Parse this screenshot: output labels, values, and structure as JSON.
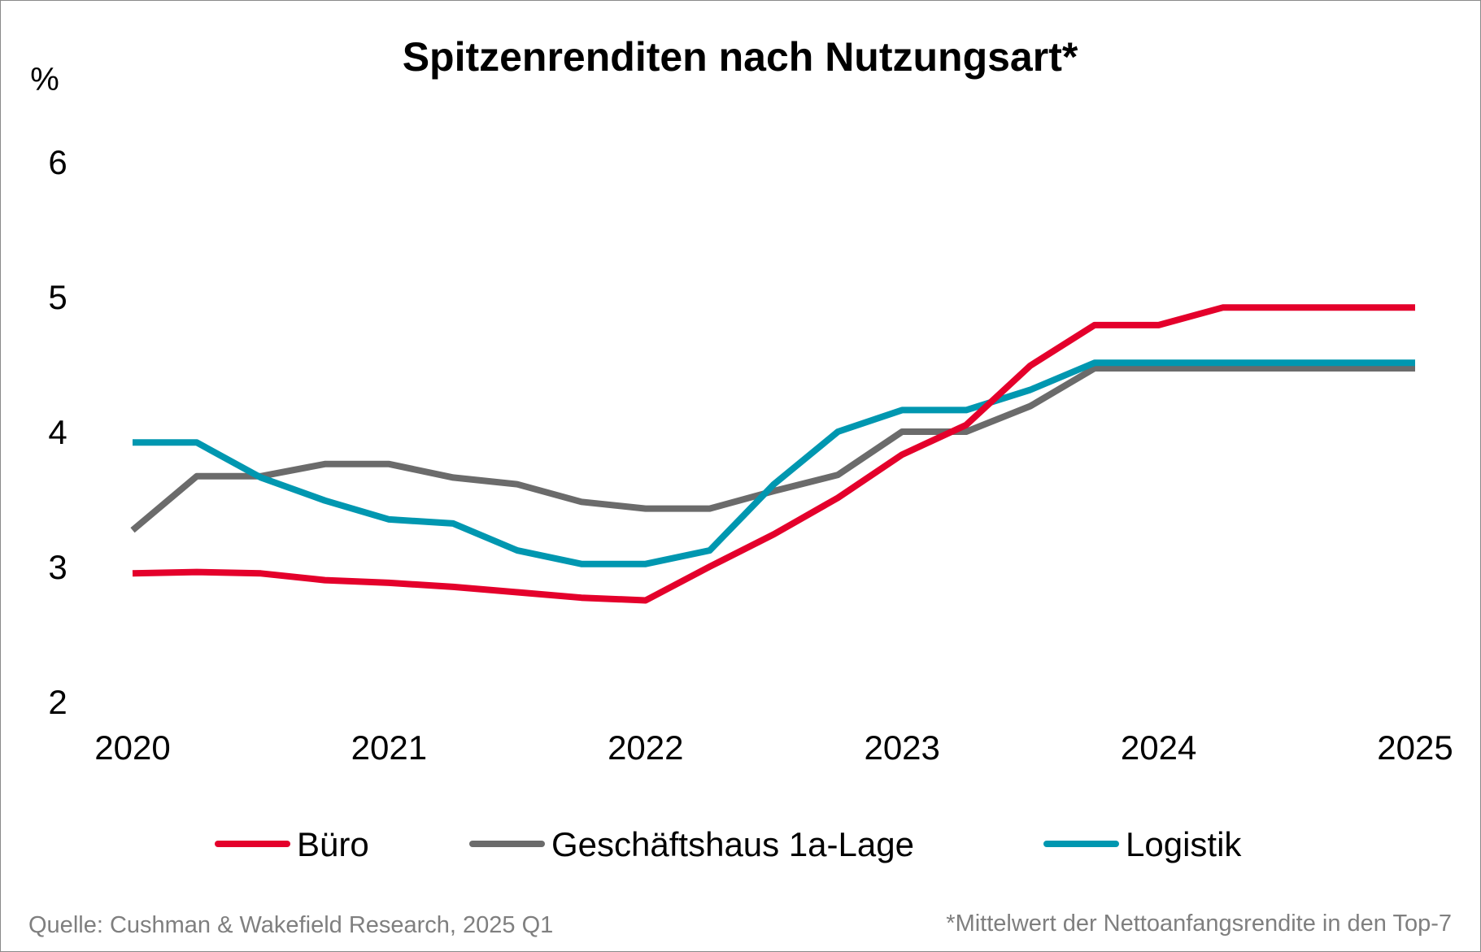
{
  "chart_data": {
    "type": "line",
    "title": "Spitzenrenditen nach Nutzungsart*",
    "ylabel": "%",
    "xlabel": "",
    "ylim": [
      2,
      6
    ],
    "yticks": [
      "2",
      "3",
      "4",
      "5",
      "6"
    ],
    "xlim": [
      2020,
      2025
    ],
    "xticks": [
      "2020",
      "2021",
      "2022",
      "2023",
      "2024",
      "2025"
    ],
    "grid": false,
    "legend_position": "bottom",
    "x": [
      2020.0,
      2020.25,
      2020.5,
      2020.75,
      2021.0,
      2021.25,
      2021.5,
      2021.75,
      2022.0,
      2022.25,
      2022.5,
      2022.75,
      2023.0,
      2023.25,
      2023.5,
      2023.75,
      2024.0,
      2024.25,
      2024.5,
      2024.75,
      2025.0
    ],
    "series": [
      {
        "name": "Büro",
        "color": "#e4002b",
        "values": [
          2.95,
          2.96,
          2.95,
          2.9,
          2.88,
          2.85,
          2.81,
          2.77,
          2.75,
          3.0,
          3.24,
          3.51,
          3.83,
          4.05,
          4.49,
          4.79,
          4.79,
          4.92,
          4.92,
          4.92,
          4.92
        ]
      },
      {
        "name": "Geschäftshaus 1a-Lage",
        "color": "#6b6b6b",
        "values": [
          3.27,
          3.67,
          3.67,
          3.76,
          3.76,
          3.66,
          3.61,
          3.48,
          3.43,
          3.43,
          3.56,
          3.68,
          4.0,
          4.0,
          4.19,
          4.47,
          4.47,
          4.47,
          4.47,
          4.47,
          4.47
        ]
      },
      {
        "name": "Logistik",
        "color": "#0097b0",
        "values": [
          3.92,
          3.92,
          3.66,
          3.49,
          3.35,
          3.32,
          3.12,
          3.02,
          3.02,
          3.12,
          3.61,
          4.0,
          4.16,
          4.16,
          4.31,
          4.51,
          4.51,
          4.51,
          4.51,
          4.51,
          4.51
        ]
      }
    ]
  },
  "footer": {
    "source": "Quelle: Cushman & Wakefield Research, 2025 Q1",
    "note": "*Mittelwert der Nettoanfangsrendite in den Top-7"
  }
}
